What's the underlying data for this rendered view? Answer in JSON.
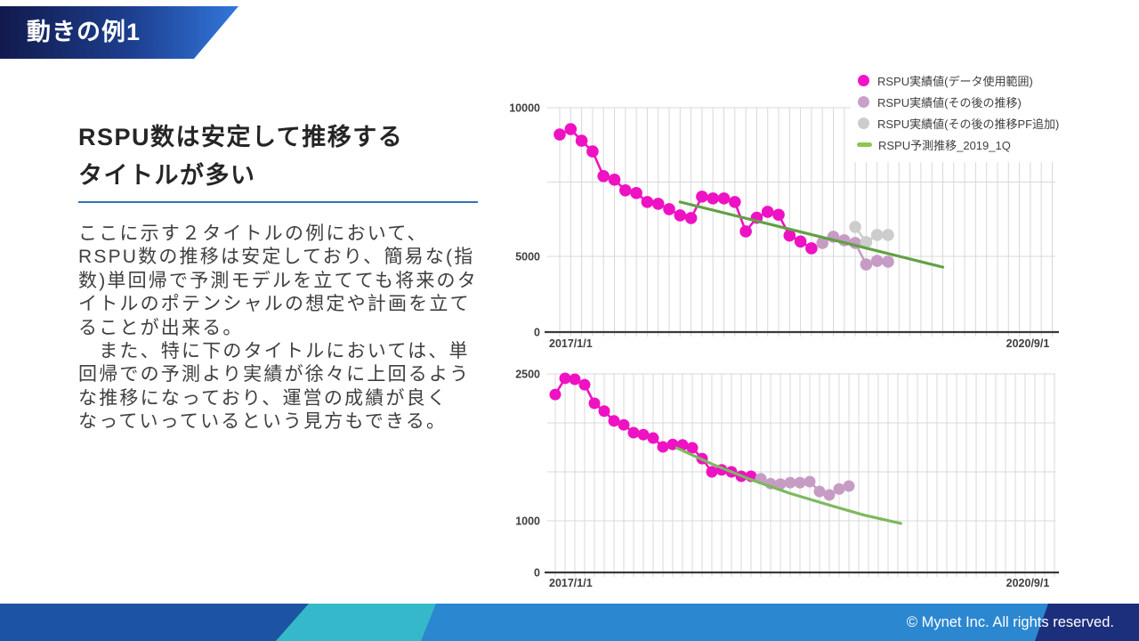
{
  "slide": {
    "banner": {
      "title": "動きの例1"
    },
    "heading": {
      "line1": "RSPU数は安定して推移する",
      "line2": "タイトルが多い"
    },
    "body": {
      "lines": [
        "ここに示す２タイトルの例において、",
        "RSPU数の推移は安定しており、簡易な(指",
        "数)単回帰で予測モデルを立てても将来のタ",
        "イトルのポテンシャルの想定や計画を立て",
        "ることが出来る。",
        "　また、特に下のタイトルにおいては、単",
        "回帰での予測より実績が徐々に上回るよう",
        "な推移になっており、運営の成績が良く",
        "なっていっているという見方もできる。"
      ]
    },
    "footer": {
      "copyright": "© Mynet Inc. All rights reserved."
    }
  },
  "legend": {
    "items": [
      {
        "marker": "circle",
        "color": "#f313c9",
        "label": "RSPU実績値(データ使用範囲)"
      },
      {
        "marker": "circle",
        "color": "#c9a0cc",
        "label": "RSPU実績値(その後の推移)"
      },
      {
        "marker": "circle",
        "color": "#cdcdcd",
        "label": "RSPU実績値(その後の推移PF追加)"
      },
      {
        "marker": "line",
        "color": "#8ec653",
        "label": "RSPU予測推移_2019_1Q"
      }
    ]
  },
  "style": {
    "gridline": "#d8d8d8",
    "axis": "#3a3a3a",
    "accent_blue": "#2e74b5",
    "magenta": "#ee12c3",
    "purple": "#c79cc4",
    "gray": "#cdcdcd",
    "green_top": "#61a144",
    "green_bottom": "#7cb95e"
  },
  "chart_data": [
    {
      "type": "scatter",
      "title": "上のタイトル RSPU推移",
      "x_axis": {
        "start_label": "2017/1/1",
        "end_label": "2020/9/1",
        "unit": "month"
      },
      "y_axis": {
        "ticks": [
          {
            "value": 10000,
            "label": "10000"
          },
          {
            "value": 7500,
            "label": ""
          },
          {
            "value": 5000,
            "label": "5000"
          },
          {
            "value": 0,
            "label": "0"
          }
        ]
      },
      "series": [
        {
          "name": "RSPU実績値(データ使用範囲)",
          "color": "#ee12c3",
          "start_month": 0,
          "values": [
            9100,
            9280,
            8890,
            8530,
            7700,
            7580,
            7220,
            7130,
            6830,
            6770,
            6590,
            6380,
            6290,
            7010,
            6950,
            6950,
            6830,
            5840,
            6300,
            6500,
            6400,
            5700,
            5500,
            5270
          ]
        },
        {
          "name": "RSPU実績値(その後の推移)",
          "color": "#c79cc4",
          "start_month": 24,
          "values": [
            5450,
            5660,
            5540,
            5450,
            4470,
            4700,
            4650
          ]
        },
        {
          "name": "RSPU実績値(その後の推移PF追加)",
          "color": "#cdcdcd",
          "start_month": 27,
          "values": [
            5990,
            5480,
            5720,
            5720
          ]
        },
        {
          "name": "RSPU予測推移_2019_1Q",
          "type": "trend",
          "color": "#61a144",
          "points": [
            [
              11,
              6830
            ],
            [
              35,
              4290
            ]
          ]
        }
      ]
    },
    {
      "type": "scatter",
      "title": "下のタイトル RSPU推移",
      "x_axis": {
        "start_label": "2017/1/1",
        "end_label": "2020/9/1",
        "unit": "month"
      },
      "y_axis": {
        "ticks": [
          {
            "value": 2500,
            "label": "2500"
          },
          {
            "value": 2000,
            "label": ""
          },
          {
            "value": 1500,
            "label": ""
          },
          {
            "value": 1000,
            "label": "1000"
          },
          {
            "value": 0,
            "label": "0"
          }
        ]
      },
      "series": [
        {
          "name": "RSPU実績値(データ使用範囲)",
          "color": "#ee12c3",
          "start_month": 0,
          "values": [
            2290,
            2455,
            2445,
            2390,
            2200,
            2120,
            2020,
            1980,
            1900,
            1880,
            1845,
            1755,
            1780,
            1775,
            1745,
            1635,
            1500,
            1520,
            1500,
            1455,
            1455
          ]
        },
        {
          "name": "RSPU実績値(その後の推移)",
          "color": "#c79cc4",
          "start_month": 21,
          "values": [
            1430,
            1380,
            1375,
            1390,
            1390,
            1400,
            1300,
            1265,
            1325,
            1355
          ]
        },
        {
          "name": "RSPU予測推移_2019_1Q",
          "type": "trend",
          "color": "#7cb95e",
          "points": [
            [
              12.4,
              1745
            ],
            [
              16,
              1580
            ],
            [
              20,
              1420
            ],
            [
              24,
              1280
            ],
            [
              28,
              1160
            ],
            [
              31.5,
              1060
            ],
            [
              35.3,
              950
            ]
          ]
        }
      ]
    }
  ]
}
